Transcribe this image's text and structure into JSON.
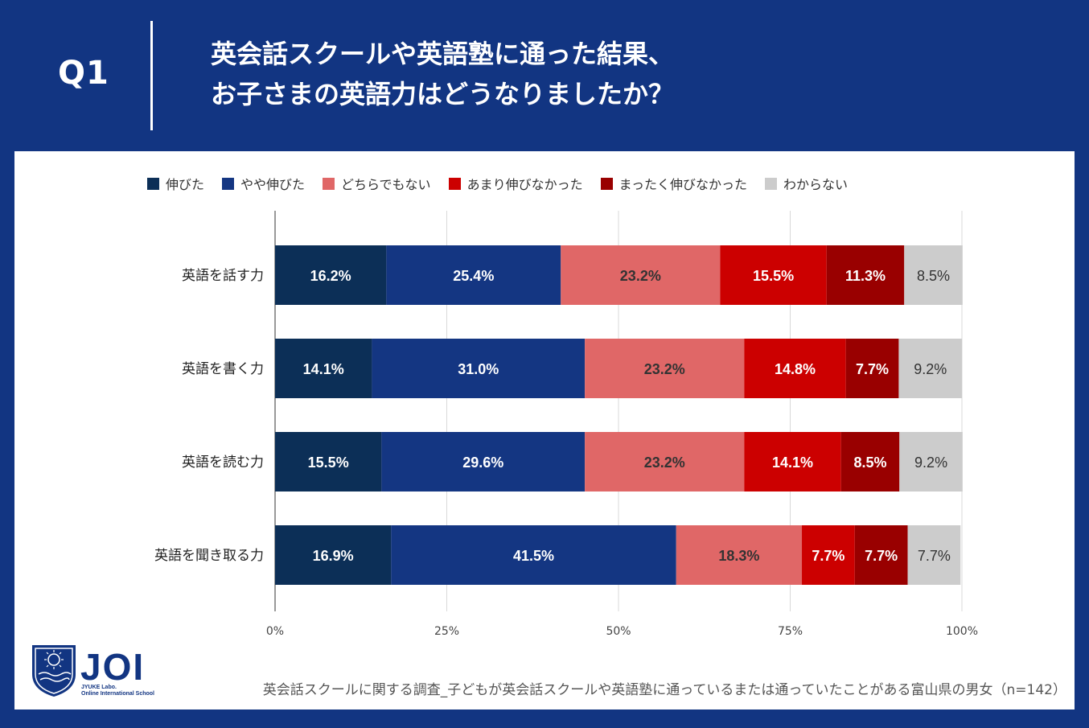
{
  "header": {
    "badge": "Q1",
    "title_line1": "英会話スクールや英語塾に通った結果、",
    "title_line2": "お子さまの英語力はどうなりましたか？"
  },
  "logo": {
    "name": "JOI",
    "sub1": "JYUKE Labo.",
    "sub2": "Online International School"
  },
  "footnote": "英会話スクールに関する調査_子どもが英会話スクールや英語塾に通っているまたは通っていたことがある富山県の男女（n=142）",
  "chart_data": {
    "type": "bar",
    "orientation": "horizontal",
    "stacked": true,
    "categories": [
      "英語を話す力",
      "英語を書く力",
      "英語を読む力",
      "英語を聞き取る力"
    ],
    "series": [
      {
        "name": "伸びた",
        "color": "#0c2f57",
        "values": [
          16.2,
          14.1,
          15.5,
          16.9
        ]
      },
      {
        "name": "やや伸びた",
        "color": "#143682",
        "values": [
          25.4,
          31.0,
          29.6,
          41.5
        ]
      },
      {
        "name": "どちらでもない",
        "color": "#e06767",
        "values": [
          23.2,
          23.2,
          23.2,
          18.3
        ]
      },
      {
        "name": "あまり伸びなかった",
        "color": "#cc0000",
        "values": [
          15.5,
          14.8,
          14.1,
          7.7
        ]
      },
      {
        "name": "まったく伸びなかった",
        "color": "#990000",
        "values": [
          11.3,
          7.7,
          8.5,
          7.7
        ]
      },
      {
        "name": "わからない",
        "color": "#cccccc",
        "values": [
          8.5,
          9.2,
          9.2,
          7.7
        ]
      }
    ],
    "xlim": [
      0,
      100
    ],
    "xticks": [
      "0%",
      "25%",
      "50%",
      "75%",
      "100%"
    ],
    "legend_position": "top",
    "grid": true
  }
}
